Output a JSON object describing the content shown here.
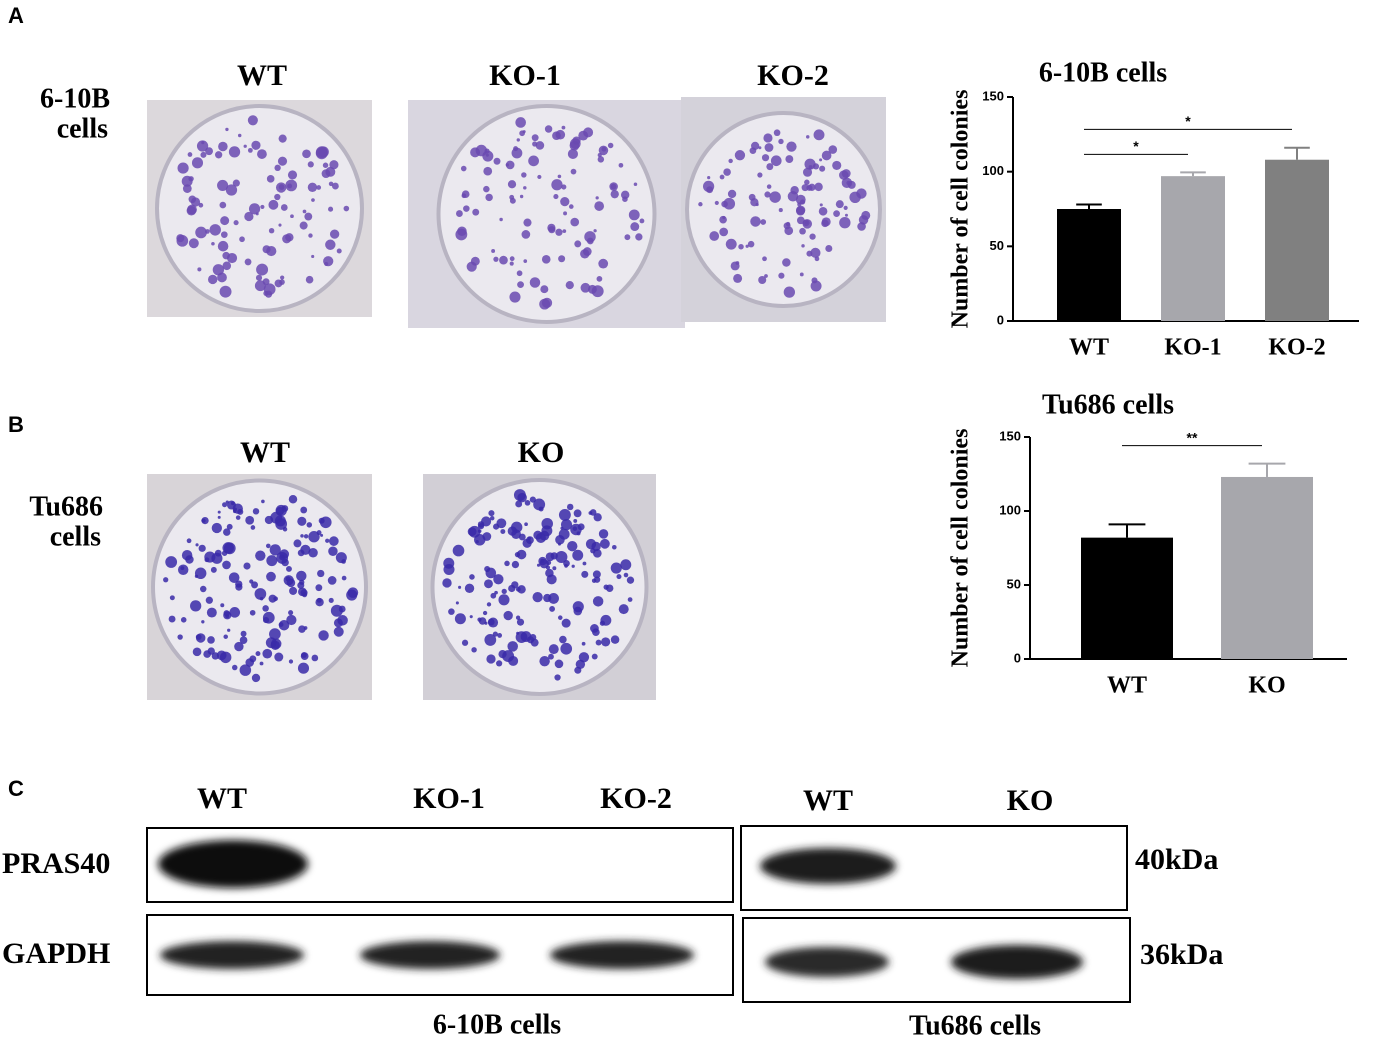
{
  "panel_labels": [
    "A",
    "B",
    "C"
  ],
  "panel_a": {
    "row_label": [
      "6-10B",
      "cells"
    ],
    "plates": [
      "WT",
      "KO-1",
      "KO-2"
    ]
  },
  "panel_b": {
    "row_label": [
      "Tu686",
      "cells"
    ],
    "plates": [
      "WT",
      "KO"
    ]
  },
  "panel_c": {
    "left": {
      "lanes": [
        "WT",
        "KO-1",
        "KO-2"
      ],
      "caption": "6-10B cells"
    },
    "right": {
      "lanes": [
        "WT",
        "KO"
      ],
      "caption": "Tu686 cells"
    },
    "proteins": [
      "PRAS40",
      "GAPDH"
    ],
    "sizes": [
      "40kDa",
      "36kDa"
    ]
  },
  "chart_data": [
    {
      "type": "bar",
      "title": "6-10B cells",
      "y_label": "Number of cell colonies",
      "categories": [
        "WT",
        "KO-1",
        "KO-2"
      ],
      "values": [
        75,
        97,
        108
      ],
      "errors": [
        3,
        2.5,
        8
      ],
      "colors": [
        "#000000",
        "#a7a7ac",
        "#808080"
      ],
      "ylim": [
        0,
        150
      ],
      "yticks": [
        0,
        50,
        100,
        150
      ],
      "significance": [
        {
          "between": [
            0,
            1
          ],
          "label": "*"
        },
        {
          "between": [
            0,
            2
          ],
          "label": "*"
        }
      ]
    },
    {
      "type": "bar",
      "title": "Tu686 cells",
      "y_label": "Number of cell colonies",
      "categories": [
        "WT",
        "KO"
      ],
      "values": [
        82,
        123
      ],
      "errors": [
        9,
        9
      ],
      "colors": [
        "#000000",
        "#a7a7ac"
      ],
      "ylim": [
        0,
        150
      ],
      "yticks": [
        0,
        50,
        100,
        150
      ],
      "significance": [
        {
          "between": [
            0,
            1
          ],
          "label": "**"
        }
      ]
    }
  ]
}
